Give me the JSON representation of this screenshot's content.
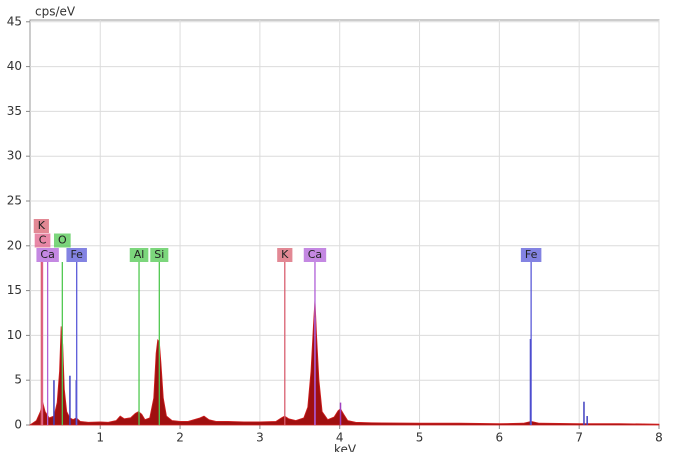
{
  "chart_data": {
    "type": "area",
    "y_label": "cps/eV",
    "x_label": "keV",
    "xlim": [
      0.12,
      8
    ],
    "ylim": [
      0,
      45.2
    ],
    "xticks": [
      1,
      2,
      3,
      4,
      5,
      6,
      7,
      8
    ],
    "yticks": [
      0,
      5,
      10,
      15,
      20,
      25,
      30,
      35,
      40,
      45
    ],
    "grid": true,
    "color": "#a01010",
    "x": [
      0.12,
      0.2,
      0.25,
      0.28,
      0.31,
      0.36,
      0.42,
      0.46,
      0.49,
      0.51,
      0.53,
      0.55,
      0.58,
      0.62,
      0.66,
      0.7,
      0.75,
      0.85,
      1.0,
      1.1,
      1.2,
      1.25,
      1.3,
      1.38,
      1.44,
      1.48,
      1.52,
      1.56,
      1.62,
      1.67,
      1.7,
      1.72,
      1.74,
      1.76,
      1.79,
      1.83,
      1.9,
      2.0,
      2.1,
      2.25,
      2.3,
      2.36,
      2.45,
      2.6,
      2.8,
      3.0,
      3.2,
      3.27,
      3.31,
      3.36,
      3.45,
      3.55,
      3.6,
      3.64,
      3.67,
      3.69,
      3.71,
      3.74,
      3.78,
      3.85,
      3.93,
      3.98,
      4.01,
      4.05,
      4.1,
      4.2,
      4.4,
      5.0,
      5.5,
      6.0,
      6.3,
      6.4,
      6.5,
      7.0,
      7.5,
      8.0
    ],
    "values": [
      0,
      0.5,
      1.5,
      2.5,
      1.5,
      0.8,
      1.0,
      2.5,
      6,
      11,
      9,
      4,
      1.5,
      0.8,
      0.6,
      0.8,
      0.4,
      0.3,
      0.35,
      0.3,
      0.5,
      1.0,
      0.7,
      0.8,
      1.3,
      1.5,
      1.2,
      0.6,
      0.8,
      3,
      8,
      9.5,
      9.3,
      7,
      3,
      1,
      0.5,
      0.4,
      0.4,
      0.8,
      1.0,
      0.6,
      0.4,
      0.4,
      0.35,
      0.35,
      0.4,
      0.8,
      1.0,
      0.7,
      0.5,
      0.8,
      2,
      6,
      11,
      14,
      10,
      5,
      1.5,
      0.6,
      0.9,
      1.6,
      1.8,
      1.2,
      0.5,
      0.3,
      0.25,
      0.2,
      0.2,
      0.15,
      0.2,
      0.4,
      0.2,
      0.15,
      0.15,
      0.1
    ],
    "sticks": {
      "x": [
        0.42,
        0.62,
        0.7,
        3.69,
        4.01,
        6.39,
        7.06,
        7.1
      ],
      "values": [
        5,
        5.5,
        5,
        12,
        2.5,
        9.6,
        2.6,
        1
      ],
      "colors": [
        "#4040c0",
        "#4040c0",
        "#4040c0",
        "#a040c0",
        "#a040c0",
        "#4040c0",
        "#4040c0",
        "#4040c0"
      ]
    },
    "markers": [
      {
        "label": "Ca",
        "x": 0.341,
        "color": "#b060d8"
      },
      {
        "label": "O",
        "x": 0.525,
        "color": "#50c850"
      },
      {
        "label": "Fe",
        "x": 0.705,
        "color": "#5a5ad8"
      },
      {
        "label": "C",
        "x": 0.277,
        "color": "#e0608a"
      },
      {
        "label": "K",
        "x": 0.262,
        "color": "#d86070"
      },
      {
        "label": "Al",
        "x": 1.486,
        "color": "#50c850"
      },
      {
        "label": "Si",
        "x": 1.74,
        "color": "#50c850"
      },
      {
        "label": "K",
        "x": 3.312,
        "color": "#d86070"
      },
      {
        "label": "Ca",
        "x": 3.69,
        "color": "#b060d8"
      },
      {
        "label": "Fe",
        "x": 6.398,
        "color": "#5a5ad8"
      }
    ]
  }
}
